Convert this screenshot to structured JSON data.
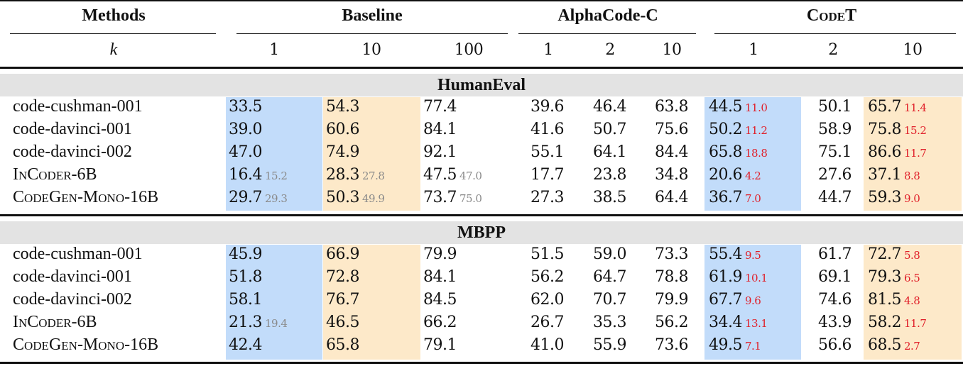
{
  "table": {
    "header": {
      "methods": "Methods",
      "k_label": "k",
      "groups": [
        {
          "name": "Baseline",
          "ks": [
            "1",
            "10",
            "100"
          ]
        },
        {
          "name": "AlphaCode-C",
          "ks": [
            "1",
            "2",
            "10"
          ]
        },
        {
          "name": "CodeT",
          "ks": [
            "1",
            "2",
            "10"
          ]
        }
      ]
    },
    "sections": [
      {
        "title": "HumanEval",
        "rows": [
          {
            "model": "code-cushman-001",
            "cells": [
              {
                "v": "33.5"
              },
              {
                "v": "54.3"
              },
              {
                "v": "77.4"
              },
              {
                "v": "39.6"
              },
              {
                "v": "46.4"
              },
              {
                "v": "63.8"
              },
              {
                "v": "44.5",
                "delta": "11.0"
              },
              {
                "v": "50.1"
              },
              {
                "v": "65.7",
                "delta": "11.4"
              }
            ]
          },
          {
            "model": "code-davinci-001",
            "cells": [
              {
                "v": "39.0"
              },
              {
                "v": "60.6"
              },
              {
                "v": "84.1"
              },
              {
                "v": "41.6"
              },
              {
                "v": "50.7"
              },
              {
                "v": "75.6"
              },
              {
                "v": "50.2",
                "delta": "11.2"
              },
              {
                "v": "58.9"
              },
              {
                "v": "75.8",
                "delta": "15.2"
              }
            ]
          },
          {
            "model": "code-davinci-002",
            "cells": [
              {
                "v": "47.0"
              },
              {
                "v": "74.9"
              },
              {
                "v": "92.1"
              },
              {
                "v": "55.1"
              },
              {
                "v": "64.1"
              },
              {
                "v": "84.4"
              },
              {
                "v": "65.8",
                "delta": "18.8"
              },
              {
                "v": "75.1"
              },
              {
                "v": "86.6",
                "delta": "11.7"
              }
            ]
          },
          {
            "model": "InCoder-6B",
            "cells": [
              {
                "v": "16.4",
                "ref": "15.2"
              },
              {
                "v": "28.3",
                "ref": "27.8"
              },
              {
                "v": "47.5",
                "ref": "47.0"
              },
              {
                "v": "17.7"
              },
              {
                "v": "23.8"
              },
              {
                "v": "34.8"
              },
              {
                "v": "20.6",
                "delta": "4.2"
              },
              {
                "v": "27.6"
              },
              {
                "v": "37.1",
                "delta": "8.8"
              }
            ]
          },
          {
            "model": "CodeGen-Mono-16B",
            "cells": [
              {
                "v": "29.7",
                "ref": "29.3"
              },
              {
                "v": "50.3",
                "ref": "49.9"
              },
              {
                "v": "73.7",
                "ref": "75.0"
              },
              {
                "v": "27.3"
              },
              {
                "v": "38.5"
              },
              {
                "v": "64.4"
              },
              {
                "v": "36.7",
                "delta": "7.0"
              },
              {
                "v": "44.7"
              },
              {
                "v": "59.3",
                "delta": "9.0"
              }
            ]
          }
        ]
      },
      {
        "title": "MBPP",
        "rows": [
          {
            "model": "code-cushman-001",
            "cells": [
              {
                "v": "45.9"
              },
              {
                "v": "66.9"
              },
              {
                "v": "79.9"
              },
              {
                "v": "51.5"
              },
              {
                "v": "59.0"
              },
              {
                "v": "73.3"
              },
              {
                "v": "55.4",
                "delta": "9.5"
              },
              {
                "v": "61.7"
              },
              {
                "v": "72.7",
                "delta": "5.8"
              }
            ]
          },
          {
            "model": "code-davinci-001",
            "cells": [
              {
                "v": "51.8"
              },
              {
                "v": "72.8"
              },
              {
                "v": "84.1"
              },
              {
                "v": "56.2"
              },
              {
                "v": "64.7"
              },
              {
                "v": "78.8"
              },
              {
                "v": "61.9",
                "delta": "10.1"
              },
              {
                "v": "69.1"
              },
              {
                "v": "79.3",
                "delta": "6.5"
              }
            ]
          },
          {
            "model": "code-davinci-002",
            "cells": [
              {
                "v": "58.1"
              },
              {
                "v": "76.7"
              },
              {
                "v": "84.5"
              },
              {
                "v": "62.0"
              },
              {
                "v": "70.7"
              },
              {
                "v": "79.9"
              },
              {
                "v": "67.7",
                "delta": "9.6"
              },
              {
                "v": "74.6"
              },
              {
                "v": "81.5",
                "delta": "4.8"
              }
            ]
          },
          {
            "model": "InCoder-6B",
            "cells": [
              {
                "v": "21.3",
                "ref": "19.4"
              },
              {
                "v": "46.5"
              },
              {
                "v": "66.2"
              },
              {
                "v": "26.7"
              },
              {
                "v": "35.3"
              },
              {
                "v": "56.2"
              },
              {
                "v": "34.4",
                "delta": "13.1"
              },
              {
                "v": "43.9"
              },
              {
                "v": "58.2",
                "delta": "11.7"
              }
            ]
          },
          {
            "model": "CodeGen-Mono-16B",
            "cells": [
              {
                "v": "42.4"
              },
              {
                "v": "65.8"
              },
              {
                "v": "79.1"
              },
              {
                "v": "41.0"
              },
              {
                "v": "55.9"
              },
              {
                "v": "73.6"
              },
              {
                "v": "49.5",
                "delta": "7.1"
              },
              {
                "v": "56.6"
              },
              {
                "v": "68.5",
                "delta": "2.7"
              }
            ]
          }
        ]
      }
    ],
    "colors": {
      "blue_highlight": "#c2dcfa",
      "orange_highlight": "#fde9c9",
      "section_band": "#e3e3e3",
      "delta_red": "#e0202a",
      "reference_gray": "#8a8a8a"
    }
  }
}
